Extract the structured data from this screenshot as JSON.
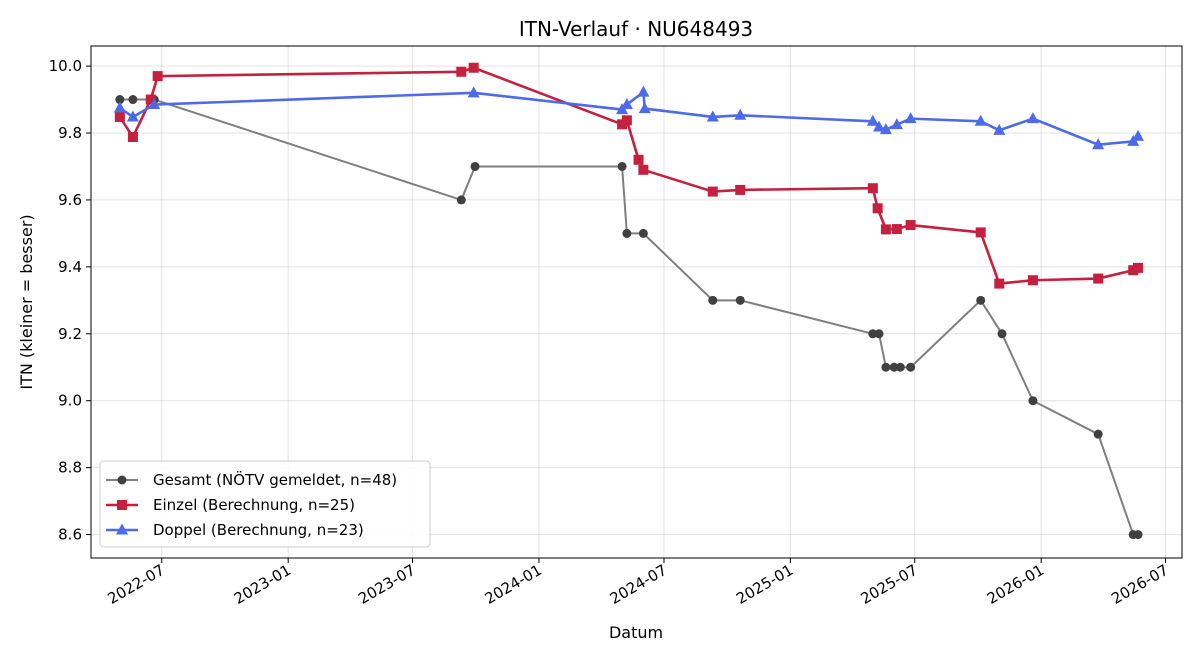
{
  "chart_data": {
    "type": "line",
    "title": "ITN-Verlauf · NU648493",
    "xlabel": "Datum",
    "ylabel": "ITN  (kleiner = besser)",
    "x_axis": "date",
    "xlim": [
      "2022-03-20",
      "2026-07-25"
    ],
    "ylim": [
      8.53,
      10.06
    ],
    "x_ticks": [
      "2022-07-01",
      "2023-01-01",
      "2023-07-01",
      "2024-01-01",
      "2024-07-01",
      "2025-01-01",
      "2025-07-01",
      "2026-01-01",
      "2026-07-01"
    ],
    "x_tick_labels": [
      "2022-07",
      "2023-01",
      "2023-07",
      "2024-01",
      "2024-07",
      "2025-01",
      "2025-07",
      "2026-01",
      "2026-07"
    ],
    "y_ticks": [
      8.6,
      8.8,
      9.0,
      9.2,
      9.4,
      9.6,
      9.8,
      10.0
    ],
    "y_tick_labels": [
      "8.6",
      "8.8",
      "9.0",
      "9.2",
      "9.4",
      "9.6",
      "9.8",
      "10.0"
    ],
    "grid": true,
    "legend_position": "bottom-left",
    "series": [
      {
        "name": "Gesamt (NÖTV gemeldet, n=48)",
        "color": "#7f7f7f",
        "marker_color": "#404040",
        "marker": "circle",
        "points": [
          {
            "x": "2022-05-01",
            "y": 9.9
          },
          {
            "x": "2022-05-20",
            "y": 9.9
          },
          {
            "x": "2022-06-20",
            "y": 9.9
          },
          {
            "x": "2023-09-10",
            "y": 9.6
          },
          {
            "x": "2023-09-30",
            "y": 9.7
          },
          {
            "x": "2024-05-01",
            "y": 9.7
          },
          {
            "x": "2024-05-08",
            "y": 9.5
          },
          {
            "x": "2024-06-01",
            "y": 9.5
          },
          {
            "x": "2024-09-10",
            "y": 9.3
          },
          {
            "x": "2024-10-20",
            "y": 9.3
          },
          {
            "x": "2025-05-01",
            "y": 9.2
          },
          {
            "x": "2025-05-10",
            "y": 9.2
          },
          {
            "x": "2025-05-20",
            "y": 9.1
          },
          {
            "x": "2025-06-01",
            "y": 9.1
          },
          {
            "x": "2025-06-10",
            "y": 9.1
          },
          {
            "x": "2025-06-25",
            "y": 9.1
          },
          {
            "x": "2025-10-05",
            "y": 9.3
          },
          {
            "x": "2025-11-05",
            "y": 9.2
          },
          {
            "x": "2025-12-20",
            "y": 9.0
          },
          {
            "x": "2026-03-25",
            "y": 8.9
          },
          {
            "x": "2026-05-15",
            "y": 8.6
          },
          {
            "x": "2026-05-22",
            "y": 8.6
          }
        ]
      },
      {
        "name": "Einzel (Berechnung, n=25)",
        "color": "#c5203e",
        "marker_color": "#c5203e",
        "marker": "square",
        "points": [
          {
            "x": "2022-05-01",
            "y": 9.848
          },
          {
            "x": "2022-05-20",
            "y": 9.788
          },
          {
            "x": "2022-06-15",
            "y": 9.9
          },
          {
            "x": "2022-06-25",
            "y": 9.97
          },
          {
            "x": "2023-09-10",
            "y": 9.983
          },
          {
            "x": "2023-09-28",
            "y": 9.995
          },
          {
            "x": "2024-05-01",
            "y": 9.826
          },
          {
            "x": "2024-05-08",
            "y": 9.838
          },
          {
            "x": "2024-05-25",
            "y": 9.72
          },
          {
            "x": "2024-06-01",
            "y": 9.69
          },
          {
            "x": "2024-09-10",
            "y": 9.625
          },
          {
            "x": "2024-10-20",
            "y": 9.63
          },
          {
            "x": "2025-05-01",
            "y": 9.635
          },
          {
            "x": "2025-05-08",
            "y": 9.575
          },
          {
            "x": "2025-05-20",
            "y": 9.512
          },
          {
            "x": "2025-06-05",
            "y": 9.513
          },
          {
            "x": "2025-06-25",
            "y": 9.525
          },
          {
            "x": "2025-10-05",
            "y": 9.503
          },
          {
            "x": "2025-11-01",
            "y": 9.35
          },
          {
            "x": "2025-12-20",
            "y": 9.36
          },
          {
            "x": "2026-03-25",
            "y": 9.365
          },
          {
            "x": "2026-05-15",
            "y": 9.39
          },
          {
            "x": "2026-05-22",
            "y": 9.397
          }
        ]
      },
      {
        "name": "Doppel (Berechnung, n=23)",
        "color": "#4d6be8",
        "marker_color": "#4d6be8",
        "marker": "triangle",
        "points": [
          {
            "x": "2022-05-01",
            "y": 9.875
          },
          {
            "x": "2022-05-20",
            "y": 9.848
          },
          {
            "x": "2022-06-20",
            "y": 9.885
          },
          {
            "x": "2023-09-28",
            "y": 9.92
          },
          {
            "x": "2024-05-01",
            "y": 9.87
          },
          {
            "x": "2024-05-08",
            "y": 9.885
          },
          {
            "x": "2024-06-01",
            "y": 9.922
          },
          {
            "x": "2024-06-03",
            "y": 9.873
          },
          {
            "x": "2024-09-10",
            "y": 9.848
          },
          {
            "x": "2024-10-20",
            "y": 9.853
          },
          {
            "x": "2025-05-01",
            "y": 9.835
          },
          {
            "x": "2025-05-10",
            "y": 9.818
          },
          {
            "x": "2025-05-20",
            "y": 9.81
          },
          {
            "x": "2025-06-05",
            "y": 9.825
          },
          {
            "x": "2025-06-25",
            "y": 9.843
          },
          {
            "x": "2025-10-05",
            "y": 9.835
          },
          {
            "x": "2025-11-01",
            "y": 9.808
          },
          {
            "x": "2025-12-20",
            "y": 9.843
          },
          {
            "x": "2026-03-25",
            "y": 9.765
          },
          {
            "x": "2026-05-15",
            "y": 9.775
          },
          {
            "x": "2026-05-22",
            "y": 9.79
          }
        ]
      }
    ]
  }
}
